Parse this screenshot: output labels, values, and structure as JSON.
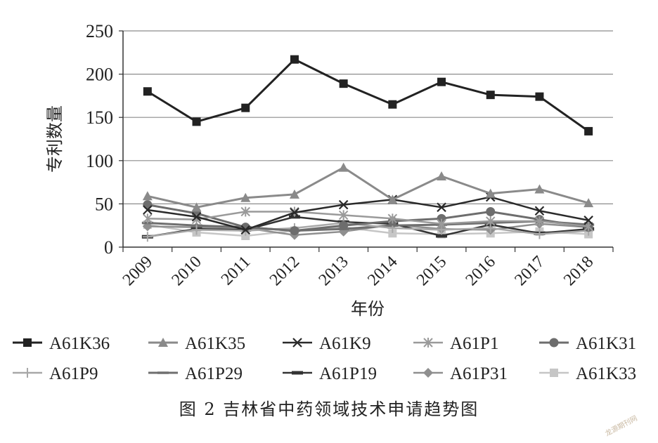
{
  "caption": "图 2    吉林省中药领域技术申请趋势图",
  "watermark": "龙源期刊网",
  "chart_data": {
    "type": "line",
    "title": "",
    "xlabel": "年份",
    "ylabel": "专利数量",
    "ylim": [
      0,
      250
    ],
    "yticks": [
      0,
      50,
      100,
      150,
      200,
      250
    ],
    "grid": true,
    "legend_position": "bottom",
    "categories": [
      "2009",
      "2010",
      "2011",
      "2012",
      "2013",
      "2014",
      "2015",
      "2016",
      "2017",
      "2018"
    ],
    "series": [
      {
        "name": "A61K36",
        "color": "#222222",
        "marker": "square",
        "width": 3,
        "values": [
          180,
          145,
          161,
          217,
          189,
          165,
          191,
          176,
          174,
          134
        ]
      },
      {
        "name": "A61K35",
        "color": "#8a8a8a",
        "marker": "triangle",
        "width": 3,
        "values": [
          59,
          46,
          57,
          61,
          92,
          55,
          82,
          62,
          67,
          51
        ]
      },
      {
        "name": "A61K9",
        "color": "#2a2a2a",
        "marker": "x",
        "width": 2.5,
        "values": [
          43,
          35,
          20,
          40,
          49,
          55,
          46,
          58,
          42,
          31
        ]
      },
      {
        "name": "A61P1",
        "color": "#9a9a9a",
        "marker": "star",
        "width": 2.5,
        "values": [
          33,
          32,
          41,
          41,
          37,
          33,
          27,
          30,
          30,
          24
        ]
      },
      {
        "name": "A61K31",
        "color": "#6d6d6d",
        "marker": "circle",
        "width": 3,
        "values": [
          49,
          39,
          23,
          19,
          25,
          30,
          33,
          41,
          32,
          23
        ]
      },
      {
        "name": "A61P9",
        "color": "#a8a8a8",
        "marker": "plus",
        "width": 2.5,
        "values": [
          12,
          20,
          19,
          22,
          28,
          22,
          20,
          22,
          15,
          19
        ]
      },
      {
        "name": "A61P29",
        "color": "#6f6f6f",
        "marker": "dash",
        "width": 3,
        "values": [
          28,
          25,
          23,
          19,
          21,
          25,
          26,
          28,
          30,
          26
        ]
      },
      {
        "name": "A61P19",
        "color": "#333333",
        "marker": "hbar",
        "width": 2.5,
        "values": [
          12,
          21,
          20,
          35,
          29,
          27,
          13,
          26,
          16,
          21
        ]
      },
      {
        "name": "A61P31",
        "color": "#8f8f8f",
        "marker": "diamond",
        "width": 2.5,
        "values": [
          24,
          23,
          22,
          14,
          18,
          26,
          21,
          20,
          27,
          23
        ]
      },
      {
        "name": "A61K33",
        "color": "#c6c6c6",
        "marker": "square",
        "width": 2.5,
        "values": [
          26,
          17,
          13,
          19,
          23,
          16,
          15,
          16,
          18,
          15
        ]
      }
    ]
  }
}
